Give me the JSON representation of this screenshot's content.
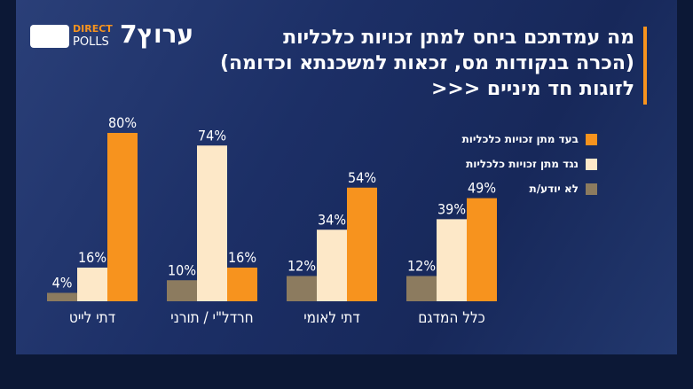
{
  "chart_data": {
    "type": "bar",
    "brand": {
      "direct": "DIRECT",
      "polls": "POLLS",
      "channel": "ערוץ7"
    },
    "title_lines": [
      "מה עמדתכם ביחס למתן זכויות כלכליות",
      "(הכרה בנקודות מס, זכאות למשכנתא וכדומה)",
      "לזוגות חד מיניים <<<"
    ],
    "categories": [
      "דתי לייט",
      "חרדל\"י / תורני",
      "דתי לאומי",
      "כלל המדגם"
    ],
    "series": [
      {
        "name": "לא יודע/ת",
        "color": "#8c7b5f",
        "values": [
          4,
          10,
          12,
          12
        ],
        "value_labels": [
          "4%",
          "10%",
          "12%",
          "12%"
        ]
      },
      {
        "name": "נגד מתן זכויות כלכליות",
        "color": "#fde8c8",
        "values": [
          16,
          74,
          34,
          39
        ],
        "value_labels": [
          "16%",
          "74%",
          "34%",
          "39%"
        ]
      },
      {
        "name": "בעד מתן זכויות כלכליות",
        "color": "#f7931e",
        "values": [
          80,
          16,
          54,
          49
        ],
        "value_labels": [
          "80%",
          "16%",
          "54%",
          "49%"
        ]
      }
    ]
  }
}
